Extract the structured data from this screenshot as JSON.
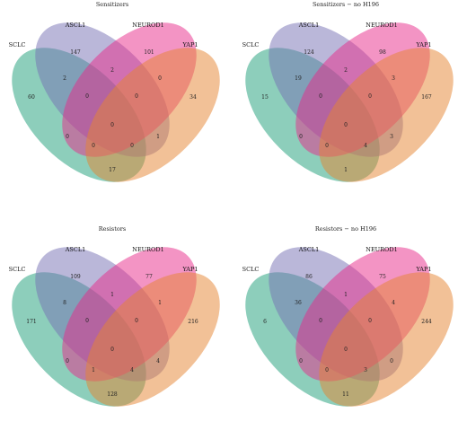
{
  "colors": {
    "sclc": "#1b9e77",
    "ascl1": "#7570b3",
    "neurod1": "#e7298a",
    "yap1": "#e6842f"
  },
  "set_labels": [
    "SCLC",
    "ASCL1",
    "NEUROD1",
    "YAP1"
  ],
  "panels": [
    {
      "title": "Sensitizers",
      "counts": {
        "sclc_only": "60",
        "ascl1_only": "147",
        "neurod1_only": "101",
        "yap1_only": "34",
        "sclc_ascl1": "2",
        "ascl1_neurod1": "2",
        "neurod1_yap1": "0",
        "sclc_ascl1_neurod1": "0",
        "ascl1_neurod1_yap1": "0",
        "sclc_neurod1": "0",
        "all": "0",
        "ascl1_yap1": "1",
        "sclc_neurod1_yap1": "0",
        "sclc_ascl1_yap1": "0",
        "sclc_yap1": "17"
      }
    },
    {
      "title": "Sensitizers − no H196",
      "counts": {
        "sclc_only": "15",
        "ascl1_only": "124",
        "neurod1_only": "98",
        "yap1_only": "167",
        "sclc_ascl1": "19",
        "ascl1_neurod1": "2",
        "neurod1_yap1": "3",
        "sclc_ascl1_neurod1": "0",
        "ascl1_neurod1_yap1": "0",
        "sclc_neurod1": "0",
        "all": "0",
        "ascl1_yap1": "3",
        "sclc_neurod1_yap1": "0",
        "sclc_ascl1_yap1": "4",
        "sclc_yap1": "1"
      }
    },
    {
      "title": "Resistors",
      "counts": {
        "sclc_only": "171",
        "ascl1_only": "109",
        "neurod1_only": "77",
        "yap1_only": "216",
        "sclc_ascl1": "8",
        "ascl1_neurod1": "1",
        "neurod1_yap1": "1",
        "sclc_ascl1_neurod1": "0",
        "ascl1_neurod1_yap1": "0",
        "sclc_neurod1": "0",
        "all": "0",
        "ascl1_yap1": "4",
        "sclc_neurod1_yap1": "1",
        "sclc_ascl1_yap1": "4",
        "sclc_yap1": "128"
      }
    },
    {
      "title": "Resistors − no H196",
      "counts": {
        "sclc_only": "6",
        "ascl1_only": "86",
        "neurod1_only": "75",
        "yap1_only": "244",
        "sclc_ascl1": "36",
        "ascl1_neurod1": "1",
        "neurod1_yap1": "4",
        "sclc_ascl1_neurod1": "0",
        "ascl1_neurod1_yap1": "0",
        "sclc_neurod1": "0",
        "all": "0",
        "ascl1_yap1": "0",
        "sclc_neurod1_yap1": "0",
        "sclc_ascl1_yap1": "3",
        "sclc_yap1": "11"
      }
    }
  ]
}
